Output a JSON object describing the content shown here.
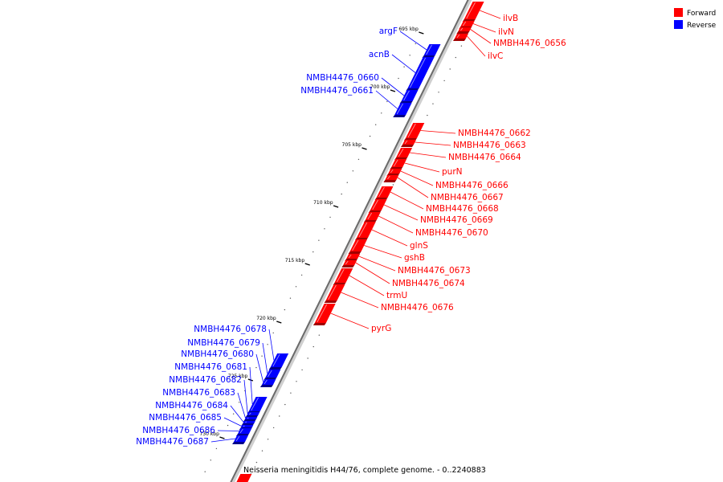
{
  "title": "Neisseria meningitidis H44/76, complete genome. - 0..2240883",
  "legend": [
    {
      "label": "Forward",
      "color": "#ff0000"
    },
    {
      "label": "Reverse",
      "color": "#0000ff"
    }
  ],
  "colors": {
    "forward": "#ff0000",
    "reverse": "#0000ff",
    "backbone": "#888888"
  },
  "chart_data": {
    "type": "genome-map",
    "kb_axis": {
      "unit": "kbp",
      "ticks": [
        695,
        700,
        705,
        710,
        715,
        720,
        725,
        730
      ]
    },
    "genes": [
      {
        "name": "ilvB",
        "strand": "forward"
      },
      {
        "name": "ilvN",
        "strand": "forward"
      },
      {
        "name": "NMBH4476_0656",
        "strand": "forward"
      },
      {
        "name": "ilvC",
        "strand": "forward"
      },
      {
        "name": "argF",
        "strand": "reverse"
      },
      {
        "name": "acnB",
        "strand": "reverse"
      },
      {
        "name": "NMBH4476_0660",
        "strand": "reverse"
      },
      {
        "name": "NMBH4476_0661",
        "strand": "reverse"
      },
      {
        "name": "NMBH4476_0662",
        "strand": "forward"
      },
      {
        "name": "NMBH4476_0663",
        "strand": "forward"
      },
      {
        "name": "NMBH4476_0664",
        "strand": "forward"
      },
      {
        "name": "purN",
        "strand": "forward"
      },
      {
        "name": "NMBH4476_0666",
        "strand": "forward"
      },
      {
        "name": "NMBH4476_0667",
        "strand": "forward"
      },
      {
        "name": "NMBH4476_0668",
        "strand": "forward"
      },
      {
        "name": "NMBH4476_0669",
        "strand": "forward"
      },
      {
        "name": "NMBH4476_0670",
        "strand": "forward"
      },
      {
        "name": "glnS",
        "strand": "forward"
      },
      {
        "name": "gshB",
        "strand": "forward"
      },
      {
        "name": "NMBH4476_0673",
        "strand": "forward"
      },
      {
        "name": "NMBH4476_0674",
        "strand": "forward"
      },
      {
        "name": "trmU",
        "strand": "forward"
      },
      {
        "name": "NMBH4476_0676",
        "strand": "forward"
      },
      {
        "name": "pyrG",
        "strand": "forward"
      },
      {
        "name": "NMBH4476_0678",
        "strand": "reverse"
      },
      {
        "name": "NMBH4476_0679",
        "strand": "reverse"
      },
      {
        "name": "NMBH4476_0680",
        "strand": "reverse"
      },
      {
        "name": "NMBH4476_0681",
        "strand": "reverse"
      },
      {
        "name": "NMBH4476_0682",
        "strand": "reverse"
      },
      {
        "name": "NMBH4476_0683",
        "strand": "reverse"
      },
      {
        "name": "NMBH4476_0684",
        "strand": "reverse"
      },
      {
        "name": "NMBH4476_0685",
        "strand": "reverse"
      },
      {
        "name": "NMBH4476_0686",
        "strand": "reverse"
      },
      {
        "name": "NMBH4476_0687",
        "strand": "reverse"
      }
    ]
  }
}
